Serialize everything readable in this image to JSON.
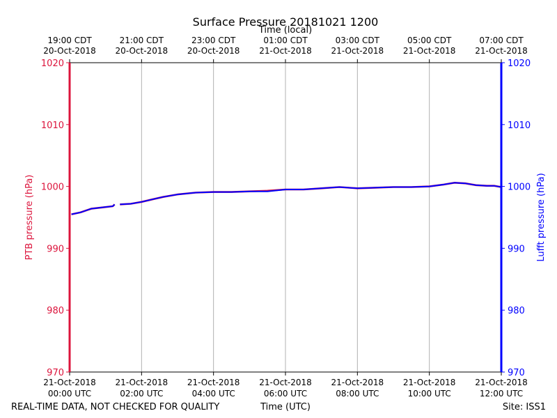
{
  "chart_data": {
    "type": "line",
    "title": "Surface Pressure 20181021 1200",
    "top_axis_label": "Time (local)",
    "xlabel": "Time (UTC)",
    "ylabel_left": "PTB pressure (hPa)",
    "ylabel_right": "Lufft pressure (hPa)",
    "footer_left": "REAL-TIME DATA, NOT CHECKED FOR QUALITY",
    "footer_right": "Site: ISS1",
    "xlim_hours": [
      0,
      12
    ],
    "ylim": [
      970,
      1020
    ],
    "y_ticks": [
      970,
      980,
      990,
      1000,
      1010,
      1020
    ],
    "grid_x": true,
    "grid_y": false,
    "colors": {
      "left_axis": "#dc143c",
      "right_axis": "#0000ff",
      "ptb_series": "#dc143c",
      "lufft_series": "#0000ff",
      "grid": "#b0b0b0"
    },
    "x_ticks_bottom": [
      {
        "hour": 0,
        "line1": "21-Oct-2018",
        "line2": "00:00 UTC"
      },
      {
        "hour": 2,
        "line1": "21-Oct-2018",
        "line2": "02:00 UTC"
      },
      {
        "hour": 4,
        "line1": "21-Oct-2018",
        "line2": "04:00 UTC"
      },
      {
        "hour": 6,
        "line1": "21-Oct-2018",
        "line2": "06:00 UTC"
      },
      {
        "hour": 8,
        "line1": "21-Oct-2018",
        "line2": "08:00 UTC"
      },
      {
        "hour": 10,
        "line1": "21-Oct-2018",
        "line2": "10:00 UTC"
      },
      {
        "hour": 12,
        "line1": "21-Oct-2018",
        "line2": "12:00 UTC"
      }
    ],
    "x_ticks_top": [
      {
        "hour": -1,
        "line1": "19:00 CDT",
        "line2": "20-Oct-2018"
      },
      {
        "hour": 1,
        "line1": "21:00 CDT",
        "line2": "20-Oct-2018"
      },
      {
        "hour": 3,
        "line1": "23:00 CDT",
        "line2": "20-Oct-2018"
      },
      {
        "hour": 5,
        "line1": "01:00 CDT",
        "line2": "21-Oct-2018"
      },
      {
        "hour": 7,
        "line1": "03:00 CDT",
        "line2": "21-Oct-2018"
      },
      {
        "hour": 9,
        "line1": "05:00 CDT",
        "line2": "21-Oct-2018"
      },
      {
        "hour": 11,
        "line1": "07:00 CDT",
        "line2": "21-Oct-2018"
      }
    ],
    "series": [
      {
        "segments": [
          [
            [
              0.05,
              995.5
            ],
            [
              0.3,
              995.8
            ],
            [
              0.6,
              996.4
            ],
            [
              0.9,
              996.6
            ],
            [
              1.2,
              996.8
            ],
            [
              1.25,
              997.1
            ]
          ],
          [
            [
              1.4,
              997.1
            ],
            [
              1.7,
              997.2
            ],
            [
              2.0,
              997.5
            ],
            [
              2.3,
              997.9
            ],
            [
              2.6,
              998.3
            ],
            [
              3.0,
              998.7
            ],
            [
              3.5,
              999.0
            ],
            [
              4.0,
              999.1
            ],
            [
              4.5,
              999.1
            ],
            [
              5.0,
              999.2
            ],
            [
              5.5,
              999.3
            ],
            [
              6.0,
              999.5
            ],
            [
              6.5,
              999.5
            ],
            [
              7.0,
              999.7
            ],
            [
              7.5,
              999.9
            ],
            [
              8.0,
              999.7
            ],
            [
              8.5,
              999.8
            ],
            [
              9.0,
              999.9
            ],
            [
              9.5,
              999.9
            ],
            [
              10.0,
              1000.0
            ],
            [
              10.4,
              1000.3
            ],
            [
              10.7,
              1000.6
            ],
            [
              11.0,
              1000.5
            ],
            [
              11.3,
              1000.2
            ],
            [
              11.6,
              1000.1
            ],
            [
              11.8,
              1000.1
            ],
            [
              12.0,
              999.9
            ]
          ]
        ]
      },
      {
        "segments": [
          [
            [
              0.05,
              995.5
            ],
            [
              0.3,
              995.8
            ],
            [
              0.6,
              996.4
            ],
            [
              0.9,
              996.6
            ],
            [
              1.2,
              996.8
            ],
            [
              1.25,
              997.1
            ]
          ],
          [
            [
              1.4,
              997.1
            ],
            [
              1.7,
              997.2
            ],
            [
              2.0,
              997.5
            ],
            [
              2.3,
              997.9
            ],
            [
              2.6,
              998.3
            ],
            [
              3.0,
              998.7
            ],
            [
              3.5,
              999.0
            ],
            [
              4.0,
              999.1
            ],
            [
              4.5,
              999.1
            ],
            [
              5.0,
              999.2
            ],
            [
              5.5,
              999.2
            ],
            [
              6.0,
              999.5
            ],
            [
              6.5,
              999.5
            ],
            [
              7.0,
              999.7
            ],
            [
              7.5,
              999.9
            ],
            [
              8.0,
              999.7
            ],
            [
              8.5,
              999.8
            ],
            [
              9.0,
              999.9
            ],
            [
              9.5,
              999.9
            ],
            [
              10.0,
              1000.0
            ],
            [
              10.4,
              1000.3
            ],
            [
              10.7,
              1000.6
            ],
            [
              11.0,
              1000.5
            ],
            [
              11.3,
              1000.2
            ],
            [
              11.6,
              1000.1
            ],
            [
              11.8,
              1000.1
            ],
            [
              12.0,
              999.9
            ]
          ]
        ]
      }
    ]
  }
}
